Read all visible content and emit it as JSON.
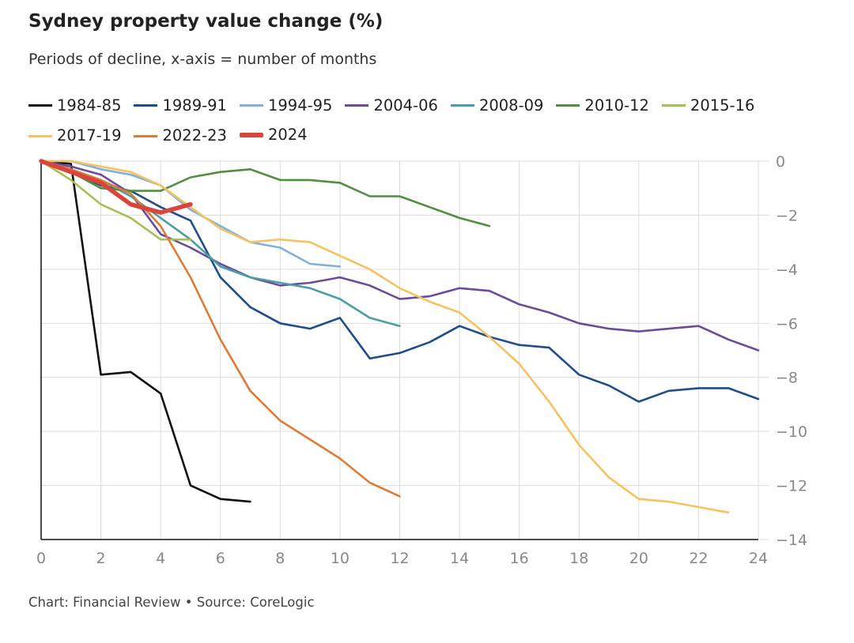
{
  "title": "Sydney property value change (%)",
  "subtitle": "Periods of decline, x-axis = number of months",
  "footer": "Chart: Financial Review • Source: CoreLogic",
  "chart_data": {
    "type": "line",
    "title": "Sydney property value change (%)",
    "xlabel": "",
    "ylabel": "",
    "xlim": [
      0,
      24
    ],
    "ylim": [
      -14,
      0
    ],
    "xticks": [
      0,
      2,
      4,
      6,
      8,
      10,
      12,
      14,
      16,
      18,
      20,
      22,
      24
    ],
    "yticks": [
      0,
      -2,
      -4,
      -6,
      -8,
      -10,
      -12,
      -14
    ],
    "ytick_labels": [
      "0",
      "−2",
      "−4",
      "−6",
      "−8",
      "−10",
      "−12",
      "−14"
    ],
    "y_axis_side": "right",
    "grid": true,
    "legend_position": "top",
    "series": [
      {
        "name": "1984-85",
        "color": "#111111",
        "x": [
          0,
          1,
          2,
          3,
          4,
          5,
          6,
          7
        ],
        "values": [
          0,
          -0.1,
          -7.9,
          -7.8,
          -8.6,
          -12.0,
          -12.5,
          -12.6
        ]
      },
      {
        "name": "1989-91",
        "color": "#1f4e8c",
        "x": [
          0,
          1,
          2,
          3,
          4,
          5,
          6,
          7,
          8,
          9,
          10,
          11,
          12,
          13,
          14,
          15,
          16,
          17,
          18,
          19,
          20,
          21,
          22,
          23,
          24
        ],
        "values": [
          0,
          -0.4,
          -0.9,
          -1.1,
          -1.7,
          -2.2,
          -4.3,
          -5.4,
          -6.0,
          -6.2,
          -5.8,
          -7.3,
          -7.1,
          -6.7,
          -6.1,
          -6.5,
          -6.8,
          -6.9,
          -7.9,
          -8.3,
          -8.9,
          -8.5,
          -8.4,
          -8.4,
          -8.8
        ]
      },
      {
        "name": "1994-95",
        "color": "#7fb0e0",
        "x": [
          0,
          1,
          2,
          3,
          4,
          5,
          6,
          7,
          8,
          9,
          10
        ],
        "values": [
          0,
          0,
          -0.3,
          -0.5,
          -0.9,
          -1.8,
          -2.4,
          -3.0,
          -3.2,
          -3.8,
          -3.9
        ]
      },
      {
        "name": "2004-06",
        "color": "#6b4c9a",
        "x": [
          0,
          1,
          2,
          3,
          4,
          5,
          6,
          7,
          8,
          9,
          10,
          11,
          12,
          13,
          14,
          15,
          16,
          17,
          18,
          19,
          20,
          21,
          22,
          23,
          24
        ],
        "values": [
          0,
          -0.2,
          -0.5,
          -1.2,
          -2.7,
          -3.2,
          -3.8,
          -4.3,
          -4.6,
          -4.5,
          -4.3,
          -4.6,
          -5.1,
          -5.0,
          -4.7,
          -4.8,
          -5.3,
          -5.6,
          -6.0,
          -6.2,
          -6.3,
          -6.2,
          -6.1,
          -6.6,
          -7.0
        ]
      },
      {
        "name": "2008-09",
        "color": "#4a9ea5",
        "x": [
          0,
          1,
          2,
          3,
          4,
          5,
          6,
          7,
          8,
          9,
          10,
          11,
          12
        ],
        "values": [
          0,
          -0.3,
          -0.7,
          -1.3,
          -2.1,
          -2.9,
          -3.9,
          -4.3,
          -4.5,
          -4.7,
          -5.1,
          -5.8,
          -6.1
        ]
      },
      {
        "name": "2010-12",
        "color": "#4f8f3f",
        "x": [
          0,
          1,
          2,
          3,
          4,
          5,
          6,
          7,
          8,
          9,
          10,
          11,
          12,
          13,
          14,
          15
        ],
        "values": [
          0,
          -0.4,
          -1.0,
          -1.1,
          -1.1,
          -0.6,
          -0.4,
          -0.3,
          -0.7,
          -0.7,
          -0.8,
          -1.3,
          -1.3,
          -1.7,
          -2.1,
          -2.4
        ]
      },
      {
        "name": "2015-16",
        "color": "#a3c155",
        "x": [
          0,
          1,
          2,
          3,
          4,
          5
        ],
        "values": [
          0,
          -0.7,
          -1.6,
          -2.1,
          -2.9,
          -2.9
        ]
      },
      {
        "name": "2017-19",
        "color": "#f6c260",
        "x": [
          0,
          1,
          2,
          3,
          4,
          5,
          6,
          7,
          8,
          9,
          10,
          11,
          12,
          13,
          14,
          15,
          16,
          17,
          18,
          19,
          20,
          21,
          22,
          23
        ],
        "values": [
          0,
          0,
          -0.2,
          -0.4,
          -0.9,
          -1.7,
          -2.5,
          -3.0,
          -2.9,
          -3.0,
          -3.5,
          -4.0,
          -4.7,
          -5.2,
          -5.6,
          -6.5,
          -7.5,
          -8.9,
          -10.5,
          -11.7,
          -12.5,
          -12.6,
          -12.8,
          -13.0
        ]
      },
      {
        "name": "2022-23",
        "color": "#e07b35",
        "x": [
          0,
          1,
          2,
          3,
          4,
          5,
          6,
          7,
          8,
          9,
          10,
          11,
          12
        ],
        "values": [
          0,
          -0.3,
          -0.7,
          -1.2,
          -2.4,
          -4.3,
          -6.6,
          -8.5,
          -9.6,
          -10.3,
          -11.0,
          -11.9,
          -12.4
        ]
      },
      {
        "name": "2024",
        "color": "#d9453a",
        "x": [
          0,
          1,
          2,
          3,
          4,
          5
        ],
        "values": [
          0,
          -0.4,
          -0.8,
          -1.6,
          -1.9,
          -1.6
        ],
        "emphasis": true
      }
    ]
  }
}
